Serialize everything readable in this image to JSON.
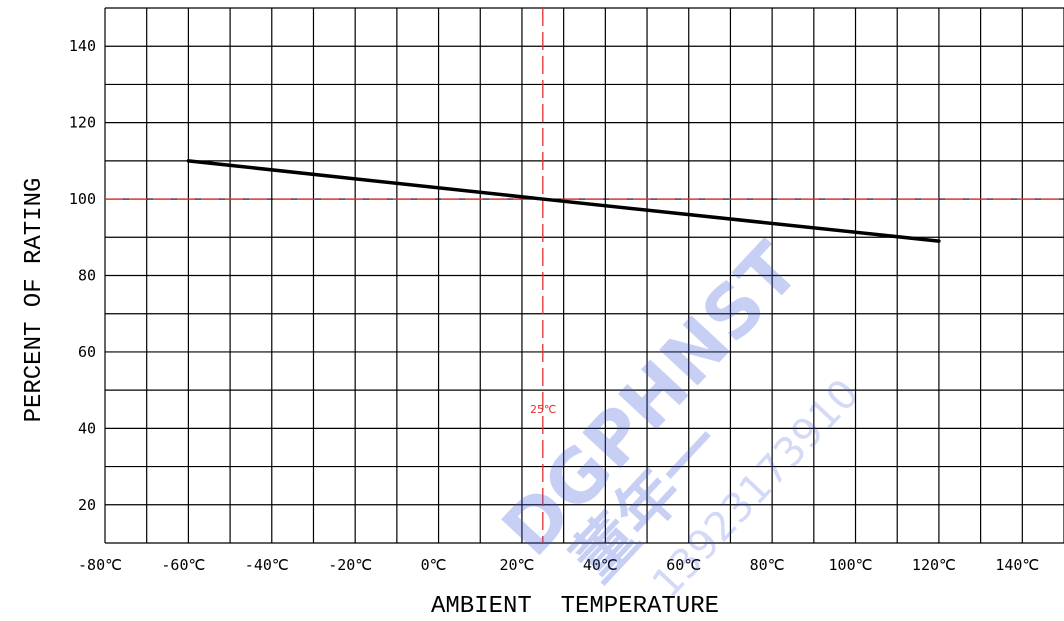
{
  "chart_data": {
    "type": "line",
    "xlabel": "AMBIENT  TEMPERATURE",
    "ylabel": "PERCENT OF RATING",
    "xlim": [
      -80,
      150
    ],
    "ylim": [
      10,
      150
    ],
    "x_ticks": [
      "-80℃",
      "-60℃",
      "-40℃",
      "-20℃",
      "0℃",
      "20℃",
      "40℃",
      "60℃",
      "80℃",
      "100℃",
      "120℃",
      "140℃"
    ],
    "y_ticks": [
      "140",
      "120",
      "100",
      "80",
      "60",
      "40",
      "20"
    ],
    "grid": true,
    "series": [
      {
        "x": [
          -60,
          25,
          120
        ],
        "y": [
          110,
          100,
          89
        ]
      }
    ],
    "reference_lines": {
      "horizontal": {
        "y": 100,
        "color": "#e03030"
      },
      "vertical": {
        "x": 25,
        "label": "25℃",
        "color": "#e03030"
      }
    },
    "colors": {
      "line": "#000000",
      "grid": "#000000",
      "reference": "#e03030"
    }
  },
  "watermark": {
    "brand": "DGPHNST",
    "chinese": "董年一",
    "number": "13923173910",
    "color": "#3b56d8"
  }
}
